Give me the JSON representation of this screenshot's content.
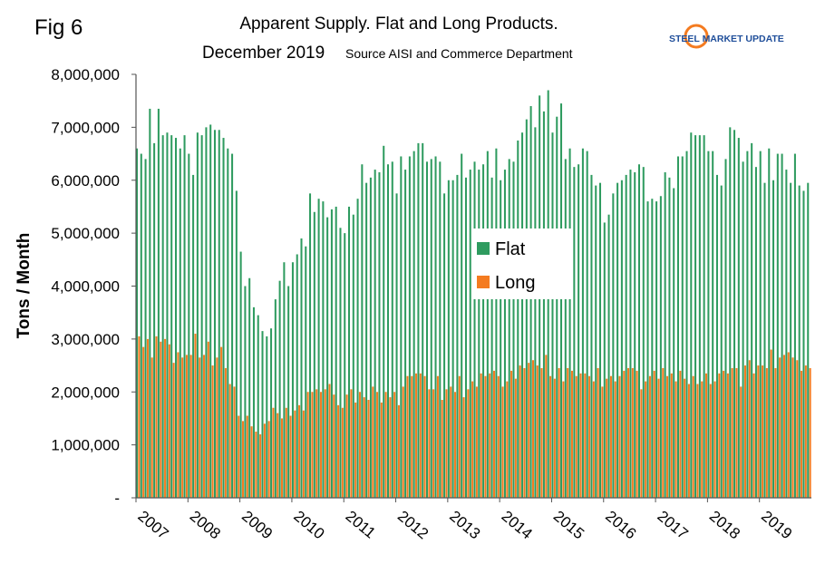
{
  "chart_data": {
    "type": "bar",
    "figure_label": "Fig 6",
    "title": "Apparent Supply. Flat and Long Products.",
    "subtitle": "December 2019",
    "source": "Source AISI and Commerce Department",
    "logo_text": "STEEL MARKET UPDATE",
    "ylabel": "Tons / Month",
    "legend": "center",
    "ylim": [
      0,
      8000000
    ],
    "yticks": [
      {
        "value": 0,
        "label": "-"
      },
      {
        "value": 1000000,
        "label": "1,000,000"
      },
      {
        "value": 2000000,
        "label": "2,000,000"
      },
      {
        "value": 3000000,
        "label": "3,000,000"
      },
      {
        "value": 4000000,
        "label": "4,000,000"
      },
      {
        "value": 5000000,
        "label": "5,000,000"
      },
      {
        "value": 6000000,
        "label": "6,000,000"
      },
      {
        "value": 7000000,
        "label": "7,000,000"
      },
      {
        "value": 8000000,
        "label": "8,000,000"
      }
    ],
    "categories": [
      "2007",
      null,
      null,
      null,
      null,
      null,
      null,
      null,
      null,
      null,
      null,
      null,
      "2008",
      null,
      null,
      null,
      null,
      null,
      null,
      null,
      null,
      null,
      null,
      null,
      "2009",
      null,
      null,
      null,
      null,
      null,
      null,
      null,
      null,
      null,
      null,
      null,
      "2010",
      null,
      null,
      null,
      null,
      null,
      null,
      null,
      null,
      null,
      null,
      null,
      "2011",
      null,
      null,
      null,
      null,
      null,
      null,
      null,
      null,
      null,
      null,
      null,
      "2012",
      null,
      null,
      null,
      null,
      null,
      null,
      null,
      null,
      null,
      null,
      null,
      "2013",
      null,
      null,
      null,
      null,
      null,
      null,
      null,
      null,
      null,
      null,
      null,
      "2014",
      null,
      null,
      null,
      null,
      null,
      null,
      null,
      null,
      null,
      null,
      null,
      "2015",
      null,
      null,
      null,
      null,
      null,
      null,
      null,
      null,
      null,
      null,
      null,
      "2016",
      null,
      null,
      null,
      null,
      null,
      null,
      null,
      null,
      null,
      null,
      null,
      "2017",
      null,
      null,
      null,
      null,
      null,
      null,
      null,
      null,
      null,
      null,
      null,
      "2018",
      null,
      null,
      null,
      null,
      null,
      null,
      null,
      null,
      null,
      null,
      null,
      "2019",
      null,
      null,
      null,
      null,
      null,
      null,
      null,
      null,
      null,
      null,
      null
    ],
    "series": [
      {
        "name": "Flat",
        "color": "#2e9b5f",
        "values": [
          6600000,
          6500000,
          6400000,
          7350000,
          6700000,
          7350000,
          6850000,
          6900000,
          6850000,
          6800000,
          6600000,
          6850000,
          6500000,
          6100000,
          6900000,
          6850000,
          7000000,
          7050000,
          6950000,
          6950000,
          6800000,
          6600000,
          6500000,
          5800000,
          4650000,
          4000000,
          4150000,
          3600000,
          3450000,
          3150000,
          3050000,
          3200000,
          3750000,
          4100000,
          4450000,
          4000000,
          4450000,
          4600000,
          4900000,
          4750000,
          5750000,
          5400000,
          5650000,
          5600000,
          5300000,
          5450000,
          5500000,
          5100000,
          5000000,
          5500000,
          5350000,
          5650000,
          6300000,
          5950000,
          6050000,
          6200000,
          6150000,
          6650000,
          6300000,
          6350000,
          5750000,
          6450000,
          6200000,
          6450000,
          6550000,
          6700000,
          6700000,
          6350000,
          6400000,
          6450000,
          6350000,
          5750000,
          6000000,
          6000000,
          6100000,
          6500000,
          6050000,
          6200000,
          6350000,
          6200000,
          6300000,
          6550000,
          6050000,
          6600000,
          6000000,
          6200000,
          6400000,
          6350000,
          6750000,
          6900000,
          7150000,
          7400000,
          7000000,
          7600000,
          7300000,
          7700000,
          6900000,
          7200000,
          7450000,
          6400000,
          6600000,
          6250000,
          6300000,
          6600000,
          6550000,
          6100000,
          5900000,
          5950000,
          5200000,
          5350000,
          5750000,
          5950000,
          6000000,
          6100000,
          6200000,
          6150000,
          6300000,
          6250000,
          5600000,
          5650000,
          5600000,
          5700000,
          6150000,
          6050000,
          5850000,
          6450000,
          6450000,
          6550000,
          6900000,
          6850000,
          6850000,
          6850000,
          6550000,
          6550000,
          6100000,
          5900000,
          6400000,
          7000000,
          6950000,
          6800000,
          6350000,
          6550000,
          6700000,
          6250000,
          6550000,
          5950000,
          6600000,
          6000000,
          6500000,
          6500000,
          6200000,
          5950000,
          6500000,
          5900000,
          5800000,
          5950000
        ]
      },
      {
        "name": "Long",
        "color": "#f47b20",
        "values": [
          3050000,
          2850000,
          3000000,
          2650000,
          3050000,
          2950000,
          3000000,
          2900000,
          2550000,
          2750000,
          2650000,
          2700000,
          2700000,
          3100000,
          2650000,
          2700000,
          2950000,
          2500000,
          2650000,
          2850000,
          2450000,
          2150000,
          2100000,
          1550000,
          1450000,
          1550000,
          1350000,
          1250000,
          1200000,
          1400000,
          1450000,
          1700000,
          1600000,
          1500000,
          1700000,
          1550000,
          1650000,
          1750000,
          1650000,
          2000000,
          2000000,
          2050000,
          2000000,
          2050000,
          2150000,
          1950000,
          1750000,
          1700000,
          1950000,
          2050000,
          1800000,
          2000000,
          1900000,
          1850000,
          2100000,
          2000000,
          1800000,
          2000000,
          1900000,
          2000000,
          1750000,
          2100000,
          2300000,
          2300000,
          2350000,
          2350000,
          2300000,
          2050000,
          2050000,
          2300000,
          1850000,
          2050000,
          2100000,
          2000000,
          2300000,
          1900000,
          2050000,
          2200000,
          2100000,
          2350000,
          2300000,
          2350000,
          2400000,
          2300000,
          2100000,
          2200000,
          2400000,
          2250000,
          2500000,
          2450000,
          2550000,
          2600000,
          2500000,
          2450000,
          2700000,
          2300000,
          2250000,
          2450000,
          2200000,
          2450000,
          2400000,
          2300000,
          2350000,
          2350000,
          2300000,
          2200000,
          2450000,
          2100000,
          2250000,
          2300000,
          2200000,
          2300000,
          2400000,
          2450000,
          2450000,
          2400000,
          2050000,
          2200000,
          2300000,
          2400000,
          2250000,
          2450000,
          2300000,
          2350000,
          2200000,
          2400000,
          2250000,
          2150000,
          2300000,
          2150000,
          2200000,
          2350000,
          2150000,
          2200000,
          2350000,
          2400000,
          2350000,
          2450000,
          2450000,
          2100000,
          2500000,
          2600000,
          2350000,
          2500000,
          2500000,
          2450000,
          2800000,
          2450000,
          2650000,
          2700000,
          2750000,
          2650000,
          2600000,
          2400000,
          2500000,
          2450000
        ]
      }
    ]
  }
}
